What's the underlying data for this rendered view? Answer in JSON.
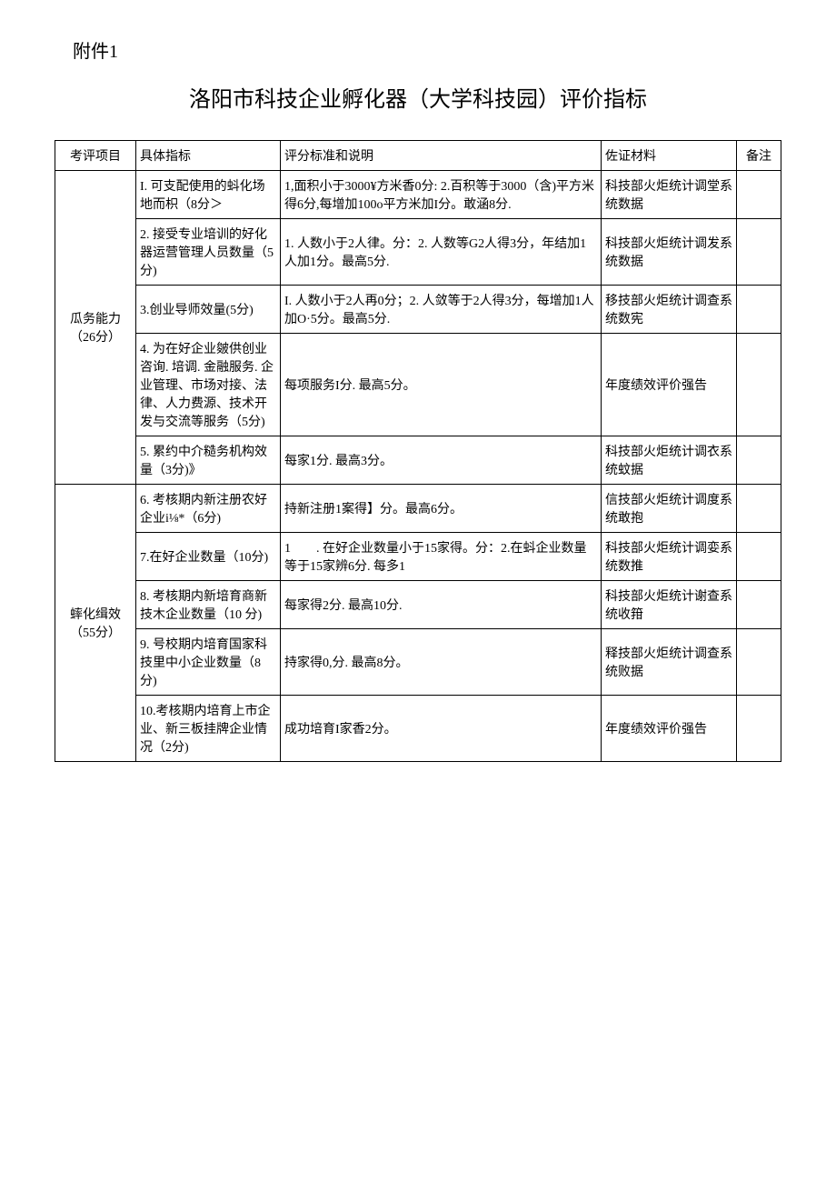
{
  "attachment": "附件1",
  "title": "洛阳市科技企业孵化器（大学科技园）评价指标",
  "headers": {
    "project": "考评项目",
    "indicator": "具体指标",
    "standard": "评分标准和说明",
    "evidence": "佐证材料",
    "note": "备注"
  },
  "groups": [
    {
      "name": "瓜务能力（26分）",
      "rows": [
        {
          "indicator": "I. 可支配使用的蚪化场地而枳（8分＞",
          "standard": "1,面积小于3000¥方米香0分: 2.百积等于3000（含)平方米得6分,每增加100o平方米加I分。敢涵8分.",
          "evidence": "科技部火炬统计调堂系统数据"
        },
        {
          "indicator": "2. 接受专业培训的好化器运营管理人员数量（5分)",
          "standard": "1. 人数小于2人律。分：2. 人数等G2人得3分，年结加1人加1分。最高5分.",
          "evidence": "科技部火炬统计调发系统数据"
        },
        {
          "indicator": "3.创业导师效量(5分)",
          "standard": "I. 人数小于2人再0分；2. 人敛等于2人得3分，每增加1人加O·5分。最高5分.",
          "evidence": "移技部火炬统计调查系统数宪"
        },
        {
          "indicator": "4. 为在好企业皴供创业咨询. 培调. 金融服务. 企业管理、市场对接、法律、人力费源、技术开发与交流等服务（5分)",
          "standard": "每项服务I分. 最高5分。",
          "evidence": "年度绩效评价强告"
        },
        {
          "indicator": "5. 累约中介糙务机构效量（3分)》",
          "standard": "每家1分. 最高3分。",
          "evidence": "科技部火炬统计调衣系统蚊据"
        }
      ]
    },
    {
      "name": "蟀化缉效（55分）",
      "rows": [
        {
          "indicator": "6. 考核期内新注册农好企业i⅛*（6分)",
          "standard": "持新注册1案得】分。最高6分。",
          "evidence": "信技部火炬统计调度系统敢抱"
        },
        {
          "indicator": "7.在好企业数量（10分)",
          "standard": "1　　. 在好企业数量小于15家得。分：2.在蚪企业数量等于15家辨6分. 每多1",
          "evidence": "科技部火炬统计调娈系统数推"
        },
        {
          "indicator": "8. 考核期内新培育商新技木企业数量（10 分)",
          "standard": "每家得2分. 最高10分.",
          "evidence": "科技部火炬统计谢查系统收箝"
        },
        {
          "indicator": "9. 号校期内培育国家科技里中小企业数量（8分)",
          "standard": "持家得0,分. 最高8分。",
          "evidence": "释技部火炬统计调查系统败据"
        },
        {
          "indicator": "10.考核期内培育上市企业、新三板挂牌企业情况（2分)",
          "standard": "成功培育I家香2分。",
          "evidence": "年度绩效评价强告"
        }
      ]
    }
  ]
}
